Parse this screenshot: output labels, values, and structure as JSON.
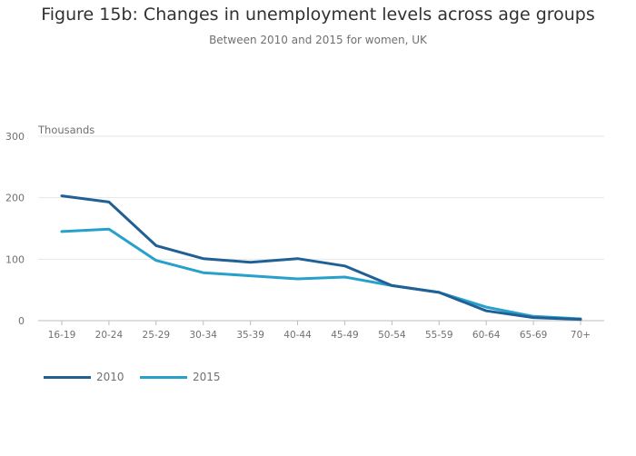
{
  "chart_data": {
    "type": "line",
    "title": "Figure 15b: Changes in unemployment levels across age groups",
    "subtitle": "Between 2010 and 2015 for women, UK",
    "ylabel": "Thousands",
    "xlabel": "",
    "ylim": [
      0,
      300
    ],
    "yticks": [
      0,
      100,
      200,
      300
    ],
    "categories": [
      "16-19",
      "20-24",
      "25-29",
      "30-34",
      "35-39",
      "40-44",
      "45-49",
      "50-54",
      "55-59",
      "60-64",
      "65-69",
      "70+"
    ],
    "series": [
      {
        "name": "2010",
        "color": "#206095",
        "values": [
          203,
          193,
          122,
          101,
          95,
          101,
          89,
          57,
          46,
          16,
          5,
          2
        ]
      },
      {
        "name": "2015",
        "color": "#27a0cc",
        "values": [
          145,
          149,
          98,
          78,
          73,
          68,
          71,
          57,
          46,
          22,
          7,
          3
        ]
      }
    ],
    "grid": true,
    "legend_position": "bottom-left"
  }
}
